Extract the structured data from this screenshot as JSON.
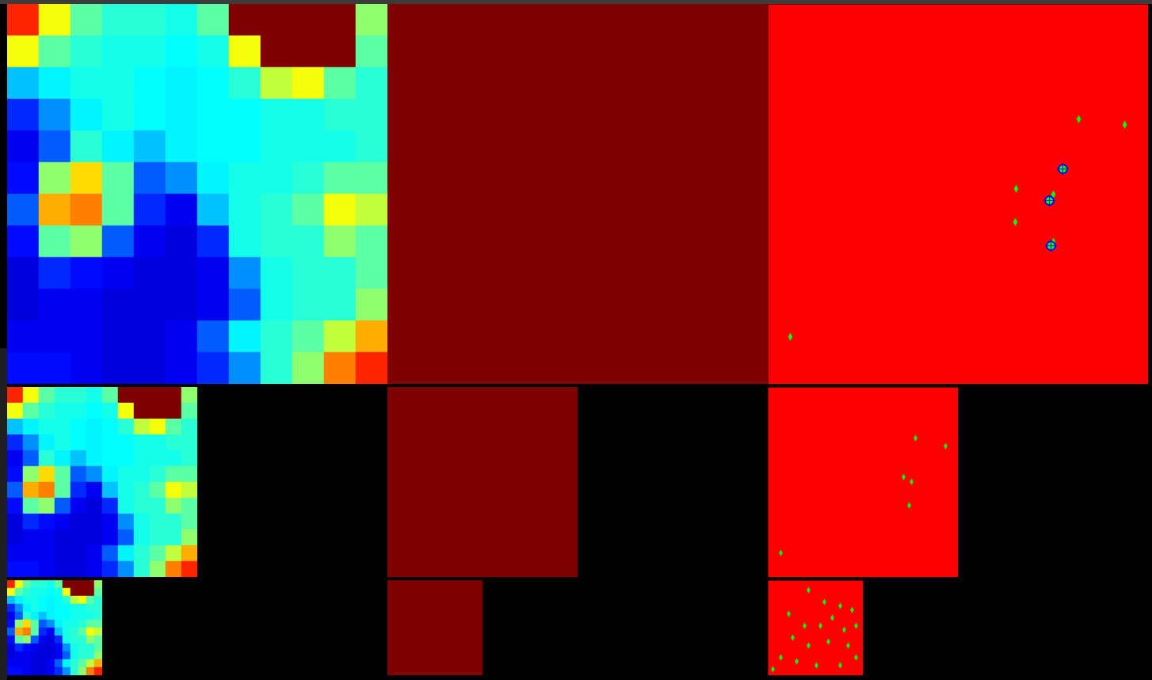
{
  "chart_data": [
    {
      "type": "heatmap",
      "color": "jet",
      "value_range": [
        0,
        1
      ],
      "tick_labels": false,
      "pyramid_levels": 3,
      "cells": [
        [
          0.85,
          0.6,
          0.45,
          0.4,
          0.4,
          0.38,
          0.45,
          1,
          1,
          1,
          1,
          0.5
        ],
        [
          0.6,
          0.45,
          0.4,
          0.38,
          0.38,
          0.36,
          0.38,
          0.6,
          1,
          1,
          1,
          0.45
        ],
        [
          0.3,
          0.35,
          0.38,
          0.38,
          0.36,
          0.35,
          0.36,
          0.4,
          0.55,
          0.6,
          0.45,
          0.4
        ],
        [
          0.15,
          0.25,
          0.35,
          0.38,
          0.36,
          0.35,
          0.36,
          0.36,
          0.38,
          0.38,
          0.4,
          0.4
        ],
        [
          0.1,
          0.2,
          0.4,
          0.35,
          0.3,
          0.35,
          0.36,
          0.36,
          0.38,
          0.38,
          0.38,
          0.4
        ],
        [
          0.12,
          0.5,
          0.65,
          0.45,
          0.2,
          0.25,
          0.35,
          0.38,
          0.38,
          0.4,
          0.45,
          0.45
        ],
        [
          0.2,
          0.7,
          0.75,
          0.45,
          0.15,
          0.1,
          0.3,
          0.38,
          0.4,
          0.45,
          0.6,
          0.55
        ],
        [
          0.12,
          0.45,
          0.5,
          0.2,
          0.1,
          0.08,
          0.15,
          0.38,
          0.4,
          0.4,
          0.5,
          0.45
        ],
        [
          0.08,
          0.15,
          0.12,
          0.1,
          0.08,
          0.08,
          0.1,
          0.25,
          0.38,
          0.4,
          0.4,
          0.45
        ],
        [
          0.08,
          0.1,
          0.1,
          0.08,
          0.08,
          0.08,
          0.1,
          0.2,
          0.38,
          0.4,
          0.4,
          0.5
        ],
        [
          0.1,
          0.1,
          0.1,
          0.08,
          0.08,
          0.1,
          0.2,
          0.35,
          0.4,
          0.45,
          0.55,
          0.7
        ],
        [
          0.12,
          0.12,
          0.1,
          0.08,
          0.08,
          0.1,
          0.15,
          0.25,
          0.4,
          0.5,
          0.75,
          0.85
        ]
      ]
    },
    {
      "type": "heatmap",
      "color": "jet",
      "value_range": [
        0,
        1
      ],
      "tick_labels": false,
      "pyramid_levels": 3,
      "cells": [
        [
          1
        ]
      ]
    },
    {
      "type": "mask",
      "colors": [
        "#ff0000",
        "#00ff00"
      ],
      "tick_labels": false,
      "pyramid_levels": 3,
      "xlim": [
        0,
        480
      ],
      "ylim": [
        0,
        480
      ],
      "levels": [
        {
          "points": [
            [
              392,
              145
            ],
            [
              450,
              152
            ],
            [
              370,
              208
            ],
            [
              360,
              240
            ],
            [
              360,
              300
            ],
            [
              313,
              233
            ],
            [
              312,
              275
            ],
            [
              28,
              420
            ]
          ],
          "markers": {
            "marker": "circle",
            "color": "#0000ff",
            "points": [
              [
                372,
                208
              ],
              [
                355,
                248
              ],
              [
                357,
                305
              ]
            ]
          }
        },
        {
          "points": [
            [
              372,
              128
            ],
            [
              448,
              148
            ],
            [
              362,
              238
            ],
            [
              356,
              298
            ],
            [
              342,
              226
            ],
            [
              32,
              418
            ]
          ]
        },
        {
          "points": [
            [
              204,
              48
            ],
            [
              284,
              108
            ],
            [
              364,
              128
            ],
            [
              424,
              148
            ],
            [
              324,
              188
            ],
            [
              264,
              228
            ],
            [
              384,
              248
            ],
            [
              444,
              228
            ],
            [
              124,
              288
            ],
            [
              204,
              328
            ],
            [
              304,
              308
            ],
            [
              404,
              328
            ],
            [
              64,
              388
            ],
            [
              144,
              408
            ],
            [
              244,
              428
            ],
            [
              24,
              448
            ],
            [
              364,
              428
            ],
            [
              444,
              388
            ],
            [
              184,
              228
            ],
            [
              104,
              168
            ]
          ]
        }
      ]
    }
  ]
}
